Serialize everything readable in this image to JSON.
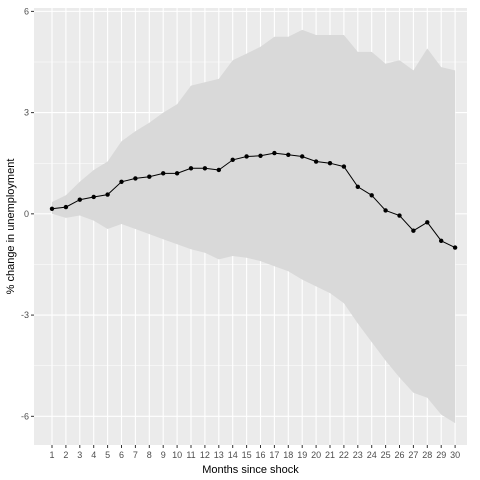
{
  "chart_data": {
    "type": "line",
    "title": "",
    "xlabel": "Months since shock",
    "ylabel": "% change in unemployment",
    "x": [
      1,
      2,
      3,
      4,
      5,
      6,
      7,
      8,
      9,
      10,
      11,
      12,
      13,
      14,
      15,
      16,
      17,
      18,
      19,
      20,
      21,
      22,
      23,
      24,
      25,
      26,
      27,
      28,
      29,
      30
    ],
    "series": [
      {
        "values": [
          0.15,
          0.2,
          0.42,
          0.5,
          0.57,
          0.95,
          1.05,
          1.1,
          1.2,
          1.2,
          1.35,
          1.35,
          1.3,
          1.6,
          1.7,
          1.72,
          1.8,
          1.75,
          1.7,
          1.55,
          1.5,
          1.4,
          0.8,
          0.55,
          0.1,
          -0.05,
          -0.5,
          -0.25,
          -0.8,
          -1.0
        ]
      }
    ],
    "band_upper": [
      0.35,
      0.55,
      0.95,
      1.3,
      1.55,
      2.15,
      2.45,
      2.7,
      3.0,
      3.25,
      3.8,
      3.9,
      4.0,
      4.55,
      4.75,
      4.95,
      5.25,
      5.25,
      5.45,
      5.3,
      5.3,
      5.3,
      4.8,
      4.8,
      4.45,
      4.55,
      4.25,
      4.9,
      4.35,
      4.25
    ],
    "band_lower": [
      0.0,
      -0.12,
      -0.05,
      -0.2,
      -0.45,
      -0.3,
      -0.45,
      -0.6,
      -0.75,
      -0.9,
      -1.05,
      -1.15,
      -1.35,
      -1.25,
      -1.3,
      -1.4,
      -1.55,
      -1.7,
      -1.95,
      -2.15,
      -2.35,
      -2.65,
      -3.25,
      -3.8,
      -4.35,
      -4.85,
      -5.3,
      -5.45,
      -5.95,
      -6.2
    ],
    "ylim": [
      -6.85,
      6.1
    ],
    "y_ticks": [
      -6,
      -3,
      0,
      3,
      6
    ],
    "y_tick_labels": [
      "-6",
      "-3",
      "0",
      "3",
      "6"
    ],
    "x_tick_labels": [
      "1",
      "2",
      "3",
      "4",
      "5",
      "6",
      "7",
      "8",
      "9",
      "10",
      "11",
      "12",
      "13",
      "14",
      "15",
      "16",
      "17",
      "18",
      "19",
      "20",
      "21",
      "22",
      "23",
      "24",
      "25",
      "26",
      "27",
      "28",
      "29",
      "30"
    ],
    "grid": true,
    "legend": "none",
    "colors": {
      "panel_background": "#ebebeb",
      "grid_line": "#ffffff",
      "band_fill": "#d9d9d9",
      "line": "#000000",
      "points": "#000000"
    }
  }
}
